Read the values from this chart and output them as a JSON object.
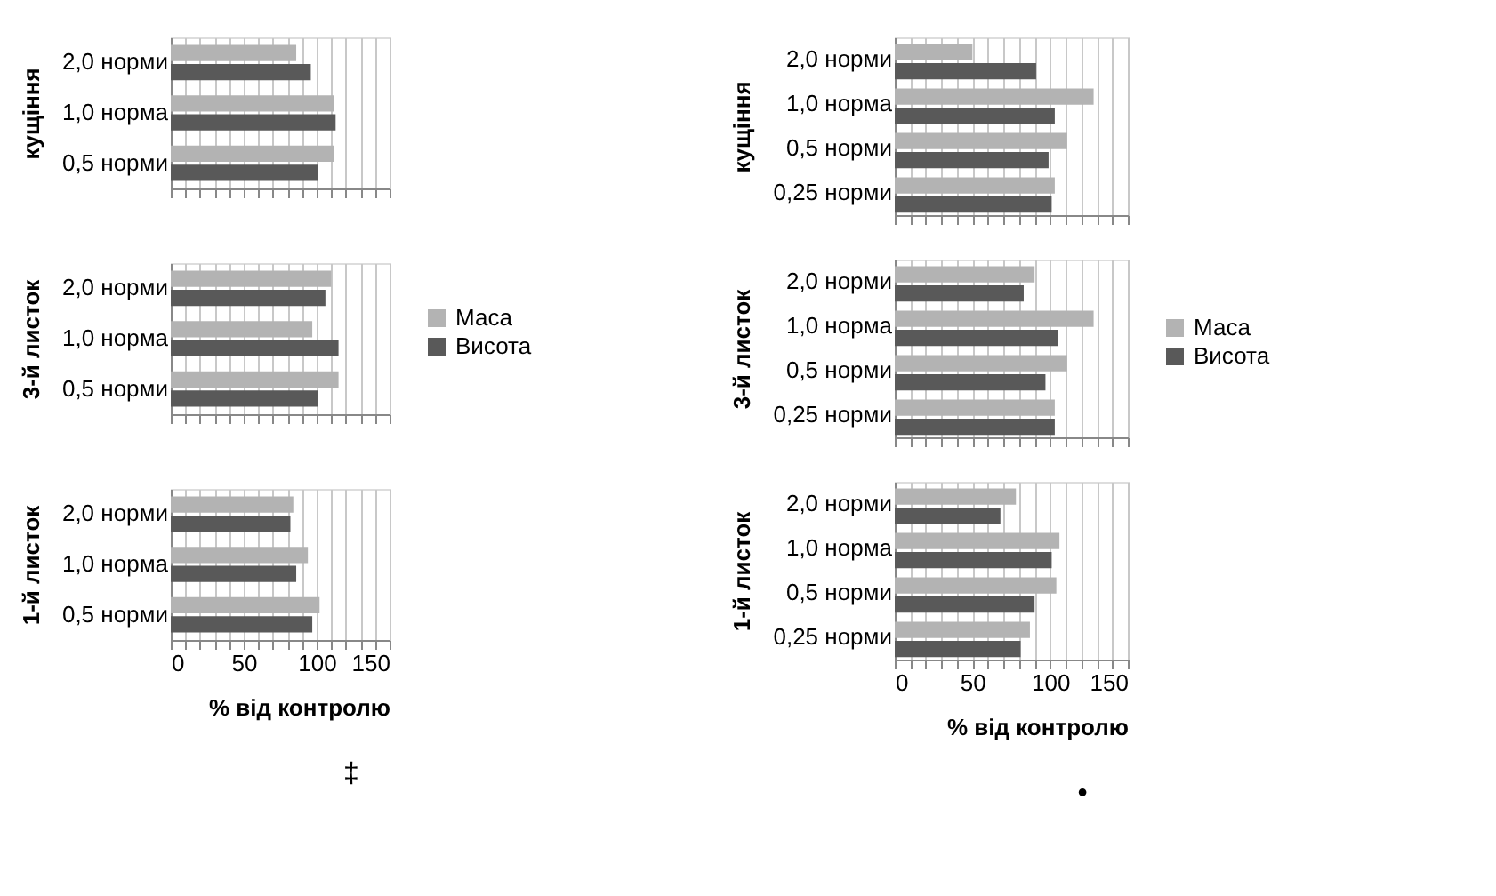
{
  "chart_data": [
    {
      "type": "bar",
      "orientation": "horizontal",
      "ylabel": "кущіння",
      "categories": [
        "2,0 норми",
        "1,0 норма",
        "0,5 норми"
      ],
      "series": [
        {
          "color": "#b3b3b3",
          "values": [
            86,
            112,
            112
          ]
        },
        {
          "color": "#595959",
          "values": [
            96,
            113,
            101
          ]
        }
      ],
      "xlim": [
        0,
        150
      ],
      "xticks": [
        0,
        {
          "value": 10,
          "label": null
        },
        {
          "value": 20,
          "label": null
        },
        {
          "value": 30,
          "label": null
        },
        {
          "value": 40,
          "label": null
        },
        50,
        {
          "value": 60,
          "label": null
        },
        {
          "value": 70,
          "label": null
        },
        {
          "value": 80,
          "label": null
        },
        {
          "value": 90,
          "label": null
        },
        100,
        {
          "value": 110,
          "label": null
        },
        {
          "value": 120,
          "label": null
        },
        {
          "value": 130,
          "label": null
        },
        {
          "value": 140,
          "label": null
        },
        150
      ],
      "grid": "x",
      "tick_labels": "y"
    },
    {
      "type": "bar",
      "orientation": "horizontal",
      "ylabel": "3-й листок",
      "categories": [
        "2,0 норми",
        "1,0 норма",
        "0,5 норми"
      ],
      "series": [
        {
          "name": "Маса",
          "color": "#b3b3b3",
          "values": [
            110,
            97,
            115
          ]
        },
        {
          "name": "Висота",
          "color": "#595959",
          "values": [
            106,
            115,
            101
          ]
        }
      ],
      "xlim": [
        0,
        150
      ],
      "xticks": [
        0,
        {
          "value": 10,
          "label": null
        },
        {
          "value": 20,
          "label": null
        },
        {
          "value": 30,
          "label": null
        },
        {
          "value": 40,
          "label": null
        },
        50,
        {
          "value": 60,
          "label": null
        },
        {
          "value": 70,
          "label": null
        },
        {
          "value": 80,
          "label": null
        },
        {
          "value": 90,
          "label": null
        },
        100,
        {
          "value": 110,
          "label": null
        },
        {
          "value": 120,
          "label": null
        },
        {
          "value": 130,
          "label": null
        },
        {
          "value": 140,
          "label": null
        },
        150
      ],
      "grid": "x",
      "tick_labels": "y",
      "legend": "right"
    },
    {
      "type": "bar",
      "orientation": "horizontal",
      "ylabel": "1-й листок",
      "xlabel": "% від контролю",
      "categories": [
        "2,0 норми",
        "1,0 норма",
        "0,5 норми"
      ],
      "series": [
        {
          "color": "#b3b3b3",
          "values": [
            84,
            94,
            102
          ]
        },
        {
          "color": "#595959",
          "values": [
            82,
            86,
            97
          ]
        }
      ],
      "xlim": [
        0,
        150
      ],
      "xticks": [
        0,
        {
          "value": 10,
          "label": null
        },
        {
          "value": 20,
          "label": null
        },
        {
          "value": 30,
          "label": null
        },
        {
          "value": 40,
          "label": null
        },
        50,
        {
          "value": 60,
          "label": null
        },
        {
          "value": 70,
          "label": null
        },
        {
          "value": 80,
          "label": null
        },
        {
          "value": 90,
          "label": null
        },
        100,
        {
          "value": 110,
          "label": null
        },
        {
          "value": 120,
          "label": null
        },
        {
          "value": 130,
          "label": null
        },
        {
          "value": 140,
          "label": null
        },
        150
      ],
      "grid": "x",
      "annotations": [
        "‡"
      ]
    },
    {
      "type": "bar",
      "orientation": "horizontal",
      "ylabel": "кущіння",
      "categories": [
        "2,0 норми",
        "1,0 норма",
        "0,5 норми",
        "0,25 норми"
      ],
      "series": [
        {
          "color": "#b3b3b3",
          "values": [
            50,
            128,
            111,
            103
          ]
        },
        {
          "color": "#595959",
          "values": [
            91,
            103,
            99,
            101
          ]
        }
      ],
      "xlim": [
        0,
        150
      ],
      "xticks": [
        0,
        {
          "value": 10,
          "label": null
        },
        {
          "value": 20,
          "label": null
        },
        {
          "value": 30,
          "label": null
        },
        {
          "value": 40,
          "label": null
        },
        50,
        {
          "value": 60,
          "label": null
        },
        {
          "value": 70,
          "label": null
        },
        {
          "value": 80,
          "label": null
        },
        {
          "value": 90,
          "label": null
        },
        100,
        {
          "value": 110,
          "label": null
        },
        {
          "value": 120,
          "label": null
        },
        {
          "value": 130,
          "label": null
        },
        {
          "value": 140,
          "label": null
        },
        150
      ],
      "grid": "x",
      "tick_labels": "y"
    },
    {
      "type": "bar",
      "orientation": "horizontal",
      "ylabel": "3-й листок",
      "categories": [
        "2,0 норми",
        "1,0 норма",
        "0,5 норми",
        "0,25 норми"
      ],
      "series": [
        {
          "name": "Маса",
          "color": "#b3b3b3",
          "values": [
            90,
            128,
            111,
            103
          ]
        },
        {
          "name": "Висота",
          "color": "#595959",
          "values": [
            83,
            105,
            97,
            103
          ]
        }
      ],
      "xlim": [
        0,
        150
      ],
      "xticks": [
        0,
        {
          "value": 10,
          "label": null
        },
        {
          "value": 20,
          "label": null
        },
        {
          "value": 30,
          "label": null
        },
        {
          "value": 40,
          "label": null
        },
        50,
        {
          "value": 60,
          "label": null
        },
        {
          "value": 70,
          "label": null
        },
        {
          "value": 80,
          "label": null
        },
        {
          "value": 90,
          "label": null
        },
        100,
        {
          "value": 110,
          "label": null
        },
        {
          "value": 120,
          "label": null
        },
        {
          "value": 130,
          "label": null
        },
        {
          "value": 140,
          "label": null
        },
        150
      ],
      "grid": "x",
      "tick_labels": "y",
      "legend": "right"
    },
    {
      "type": "bar",
      "orientation": "horizontal",
      "ylabel": "1-й листок",
      "xlabel": "% від контролю",
      "categories": [
        "2,0 норми",
        "1,0 норма",
        "0,5 норми",
        "0,25 норми"
      ],
      "series": [
        {
          "color": "#b3b3b3",
          "values": [
            78,
            106,
            104,
            87
          ]
        },
        {
          "color": "#595959",
          "values": [
            68,
            101,
            90,
            81
          ]
        }
      ],
      "xlim": [
        0,
        150
      ],
      "xticks": [
        0,
        {
          "value": 10,
          "label": null
        },
        {
          "value": 20,
          "label": null
        },
        {
          "value": 30,
          "label": null
        },
        {
          "value": 40,
          "label": null
        },
        50,
        {
          "value": 60,
          "label": null
        },
        {
          "value": 70,
          "label": null
        },
        {
          "value": 80,
          "label": null
        },
        {
          "value": 90,
          "label": null
        },
        100,
        {
          "value": 110,
          "label": null
        },
        {
          "value": 120,
          "label": null
        },
        {
          "value": 130,
          "label": null
        },
        {
          "value": 140,
          "label": null
        },
        150
      ],
      "grid": "x",
      "annotations": [
        "•"
      ]
    }
  ]
}
